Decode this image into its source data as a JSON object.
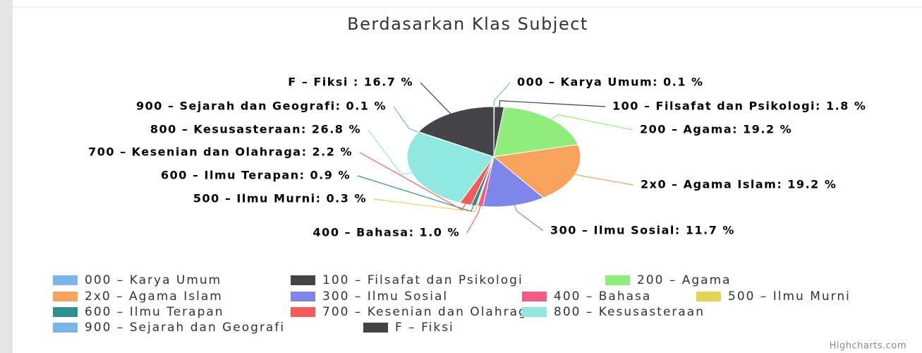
{
  "chart_data": {
    "type": "pie",
    "title": "Berdasarkan Klas Subject",
    "categories": [
      "000 – Karya Umum",
      "100 – Filsafat dan Psikologi",
      "200 – Agama",
      "2x0 – Agama Islam",
      "300 – Ilmu Sosial",
      "400 – Bahasa",
      "500 – Ilmu Murni",
      "600 – Ilmu Terapan",
      "700 – Kesenian dan Olahraga",
      "800 – Kesusasteraan",
      "900 – Sejarah dan Geografi",
      "F – Fiksi"
    ],
    "values": [
      0.1,
      1.8,
      19.2,
      19.2,
      11.7,
      1.0,
      0.3,
      0.9,
      2.2,
      26.8,
      0.1,
      16.7
    ],
    "value_labels": [
      "000 – Karya Umum: 0.1 %",
      "100 – Filsafat dan Psikologi: 1.8 %",
      "200 – Agama: 19.2 %",
      "2x0 – Agama Islam: 19.2 %",
      "300 – Ilmu Sosial: 11.7 %",
      "400 – Bahasa: 1.0 %",
      "500 – Ilmu Murni: 0.3 %",
      "600 – Ilmu Terapan: 0.9 %",
      "700 – Kesenian dan Olahraga: 2.2 %",
      "800 – Kesusasteraan: 26.8 %",
      "900 – Sejarah dan Geografi: 0.1 %",
      "F – Fiksi : 16.7 %"
    ],
    "colors": [
      "#7cb5ec",
      "#434348",
      "#90ed7d",
      "#f7a35c",
      "#8085e9",
      "#f15c80",
      "#e4d354",
      "#2b908f",
      "#f45b5b",
      "#91e8e1",
      "#7cb5ec",
      "#434348"
    ],
    "credits": "Highcharts.com"
  }
}
